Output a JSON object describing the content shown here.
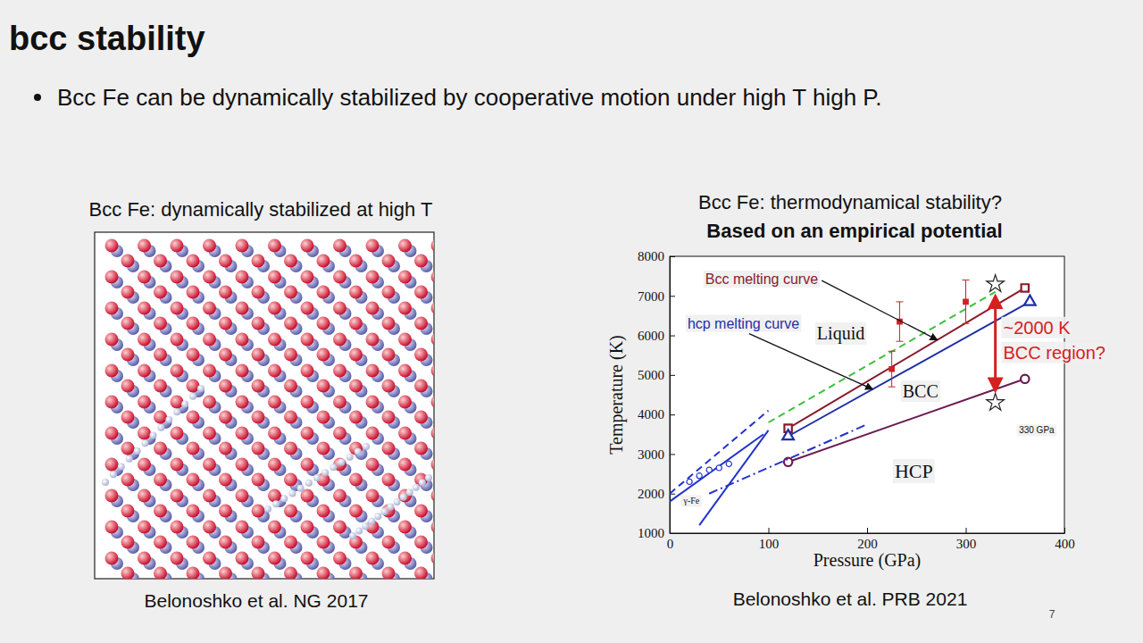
{
  "slide": {
    "title": "bcc stability",
    "bullet": "Bcc Fe can be dynamically stabilized by cooperative motion under high T high P.",
    "left_panel": {
      "title": "Bcc Fe: dynamically stabilized at high T",
      "caption": "Belonoshko et al. NG 2017"
    },
    "right_panel": {
      "title": "Bcc Fe: thermodynamical stability?",
      "subtitle": "Based on an empirical potential",
      "caption": "Belonoshko et al. PRB 2021"
    },
    "page_number": "7"
  },
  "chart_data": {
    "type": "line",
    "xlabel": "Pressure (GPa)",
    "ylabel": "Temperature (K)",
    "xlim": [
      0,
      400
    ],
    "ylim": [
      1000,
      8000
    ],
    "xticks": [
      0,
      100,
      200,
      300,
      400
    ],
    "yticks": [
      1000,
      2000,
      3000,
      4000,
      5000,
      6000,
      7000,
      8000
    ],
    "series": [
      {
        "name": "Bcc melting curve",
        "color": "#8b1a2b",
        "x": [
          120,
          360
        ],
        "values": [
          3650,
          7200
        ],
        "marker": "square",
        "line_style": "solid"
      },
      {
        "name": "hcp melting curve",
        "color": "#1f2fa8",
        "x": [
          120,
          365
        ],
        "values": [
          3450,
          6850
        ],
        "marker": "triangle",
        "line_style": "solid"
      },
      {
        "color": "#6b1a4f",
        "x": [
          120,
          360
        ],
        "values": [
          2800,
          4900
        ],
        "marker": "circle",
        "line_style": "solid"
      },
      {
        "color": "#3fbf3f",
        "x": [
          100,
          330
        ],
        "values": [
          3800,
          7100
        ],
        "marker": "none",
        "line_style": "dashed"
      },
      {
        "color": "#2233cc",
        "x": [
          0,
          100
        ],
        "values": [
          2000,
          4100
        ],
        "marker": "none",
        "line_style": "dashed"
      },
      {
        "color": "#2233cc",
        "x": [
          30,
          100
        ],
        "values": [
          1200,
          3600
        ],
        "marker": "none",
        "line_style": "solid"
      },
      {
        "color": "#2233cc",
        "x": [
          0,
          95
        ],
        "values": [
          1800,
          3500
        ],
        "marker": "none",
        "line_style": "solid"
      },
      {
        "color": "#2233cc",
        "x": [
          40,
          200
        ],
        "values": [
          2000,
          3750
        ],
        "marker": "none",
        "line_style": "dashdot"
      },
      {
        "type": "scatter",
        "color": "#2233cc",
        "x": [
          20,
          30,
          40,
          50,
          60
        ],
        "values": [
          2300,
          2450,
          2600,
          2650,
          2750
        ],
        "marker": "circle"
      },
      {
        "type": "scatter",
        "color": "#cc2222",
        "x": [
          225,
          233,
          300
        ],
        "values": [
          5150,
          6350,
          6850
        ],
        "errors": [
          450,
          500,
          550
        ],
        "marker": "square"
      },
      {
        "type": "scatter",
        "color": "#222222",
        "x": [
          330,
          330
        ],
        "values": [
          7300,
          4300
        ],
        "marker": "star"
      }
    ],
    "annotations": [
      {
        "text": "Liquid",
        "color": "#111111"
      },
      {
        "text": "BCC",
        "color": "#111111"
      },
      {
        "text": "HCP",
        "color": "#111111"
      },
      {
        "text": "~2000 K",
        "color": "#d62020"
      },
      {
        "text": "BCC region?",
        "color": "#d62020"
      },
      {
        "text": "330 GPa",
        "color": "#111111"
      },
      {
        "text": "γ-Fe",
        "color": "#111111"
      }
    ]
  }
}
